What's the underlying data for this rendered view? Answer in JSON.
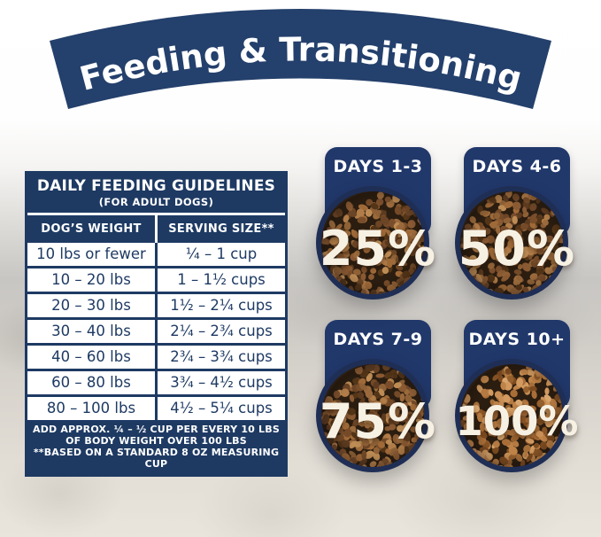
{
  "banner": {
    "title": "Feeding & Transitioning"
  },
  "colors": {
    "navy": "#1e3a63",
    "navy_ring": "#1f2e55",
    "cream_text": "#f7f1e4",
    "white": "#ffffff"
  },
  "table": {
    "title": "DAILY FEEDING GUIDELINES",
    "subtitle": "(FOR ADULT DOGS)",
    "columns": [
      "DOG’S WEIGHT",
      "SERVING SIZE**"
    ],
    "rows": [
      {
        "weight": "10 lbs or fewer",
        "serving": "¼ – 1 cup"
      },
      {
        "weight": "10 – 20 lbs",
        "serving": "1 – 1½ cups"
      },
      {
        "weight": "20 – 30 lbs",
        "serving": "1½ – 2¼ cups"
      },
      {
        "weight": "30 – 40 lbs",
        "serving": "2¼ – 2¾ cups"
      },
      {
        "weight": "40 – 60 lbs",
        "serving": "2¾ – 3¾ cups"
      },
      {
        "weight": "60 – 80 lbs",
        "serving": "3¾ – 4½ cups"
      },
      {
        "weight": "80 – 100 lbs",
        "serving": "4½ – 5¼ cups"
      }
    ],
    "footnote1": "ADD APPROX. ¼ – ½ CUP PER EVERY 10 LBS OF BODY WEIGHT OVER 100 LBS",
    "footnote2": "**BASED ON A STANDARD 8 OZ MEASURING CUP"
  },
  "transition_steps": [
    {
      "days": "DAYS 1-3",
      "percent": "25%"
    },
    {
      "days": "DAYS 4-6",
      "percent": "50%"
    },
    {
      "days": "DAYS 7-9",
      "percent": "75%"
    },
    {
      "days": "DAYS 10+",
      "percent": "100%"
    }
  ]
}
